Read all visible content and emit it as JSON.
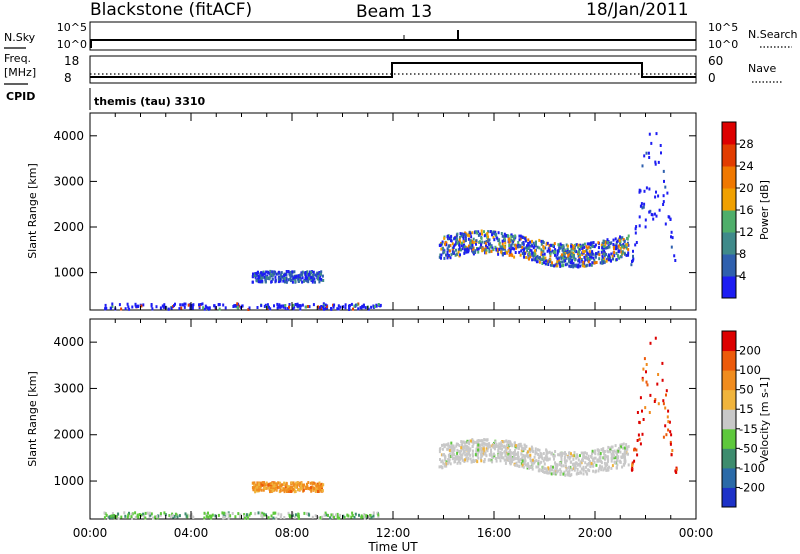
{
  "header": {
    "title": "Blackstone (fitACF)",
    "beam": "Beam 13",
    "date": "18/Jan/2011"
  },
  "sky_panel": {
    "left_label": "N.Sky",
    "left_ticks": [
      "10^5",
      "10^0"
    ],
    "right_ticks": [
      "10^5",
      "10^0"
    ],
    "right_label": "N.Search"
  },
  "freq_panel": {
    "left_label_1": "Freq.",
    "left_label_2": "[MHz]",
    "left_ticks": [
      "18",
      "8"
    ],
    "right_ticks": [
      "60",
      "0"
    ],
    "right_label": "Nave",
    "cpid_label": "CPID",
    "cpid_text": "themis (tau) 3310"
  },
  "chart_data": [
    {
      "type": "heatmap",
      "name": "power-panel",
      "ylabel": "Slant Range [km]",
      "ylim": [
        180,
        4500
      ],
      "yticks": [
        1000,
        2000,
        3000,
        4000
      ],
      "xlim": [
        0,
        24
      ],
      "colorbar_label": "Power [dB]",
      "colorbar_ticks": [
        "4",
        "8",
        "12",
        "16",
        "20",
        "24",
        "28"
      ],
      "colorbar_colors": [
        "#1d1df2",
        "#2f60ae",
        "#3f8a8a",
        "#4fae6a",
        "#f0a000",
        "#f07800",
        "#e23c00",
        "#dd0000"
      ],
      "features": [
        {
          "label": "ground scatter band",
          "x": [
            0.5,
            11.5
          ],
          "y": [
            200,
            350
          ],
          "level": 1
        },
        {
          "label": "morning patch",
          "x": [
            6.4,
            9.2
          ],
          "y": [
            820,
            1060
          ],
          "level": 2
        },
        {
          "label": "evening band",
          "x": [
            13.8,
            21.3
          ],
          "y": [
            1200,
            1900
          ],
          "level": 4
        },
        {
          "label": "rising echoes",
          "x": [
            21.4,
            23.2
          ],
          "y": [
            1200,
            4300
          ],
          "level": 1
        }
      ]
    },
    {
      "type": "heatmap",
      "name": "velocity-panel",
      "ylabel": "Slant Range [km]",
      "ylim": [
        180,
        4500
      ],
      "yticks": [
        1000,
        2000,
        3000,
        4000
      ],
      "xlim": [
        0,
        24
      ],
      "xticks": [
        "00:00",
        "04:00",
        "08:00",
        "12:00",
        "16:00",
        "20:00",
        "00:00"
      ],
      "xlabel": "Time UT",
      "colorbar_label": "Velocity [m s-1]",
      "colorbar_ticks": [
        "200",
        "100",
        "50",
        "15",
        "-15",
        "-50",
        "-100",
        "-200"
      ],
      "colorbar_colors": [
        "#1d32c8",
        "#2a6aa8",
        "#3d8c6e",
        "#5ec83c",
        "#c8c8c8",
        "#f0b43c",
        "#f08c1e",
        "#ec5a0a",
        "#dc0000"
      ],
      "features": [
        {
          "label": "ground scatter band",
          "x": [
            0.5,
            11.5
          ],
          "y": [
            200,
            350
          ],
          "level": 4
        },
        {
          "label": "morning patch",
          "x": [
            6.4,
            9.2
          ],
          "y": [
            800,
            1000
          ],
          "level": 5
        },
        {
          "label": "evening band",
          "x": [
            13.8,
            21.3
          ],
          "y": [
            1200,
            1900
          ],
          "level": 4
        },
        {
          "label": "rising echoes",
          "x": [
            21.4,
            23.2
          ],
          "y": [
            1200,
            4300
          ],
          "level": 8
        }
      ]
    }
  ]
}
